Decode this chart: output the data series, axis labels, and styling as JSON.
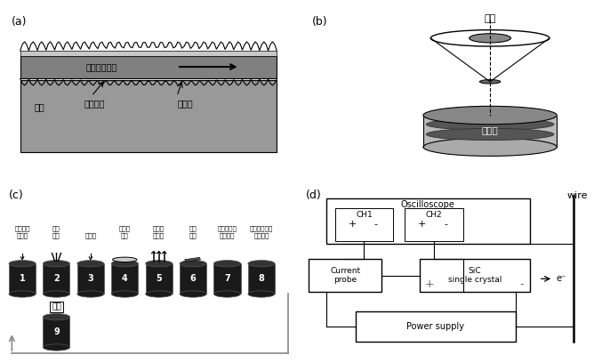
{
  "bg_color": "#ffffff",
  "panel_a": {
    "label": "(a)",
    "wire_text": "线锯运动方向",
    "wire_color": "#808080",
    "wire_light_color": "#c8c8c8",
    "workpiece_color": "#999999",
    "label1": "工件",
    "label2": "固结磨料",
    "label3": "切割区"
  },
  "panel_b": {
    "label": "(b)",
    "laser_text": "激光",
    "layer_text": "处理层",
    "disk_color": "#808080",
    "lens_color": "#d0d0d0"
  },
  "panel_c": {
    "label": "(c)",
    "steps": [
      "表面清洗\n预处理",
      "激光\n调理",
      "栖柱层",
      "聚合物\n涂层",
      "快速冷\n却剥离",
      "剥离\n品片",
      "清除聚合物\n和栖柱层",
      "获得品片和回\n收剩余料"
    ],
    "step9": "抛光",
    "numbers": [
      "1",
      "2",
      "3",
      "4",
      "5",
      "6",
      "7",
      "8",
      "9"
    ],
    "container_color": "#1a1a1a",
    "container_top_color": "#333333"
  },
  "panel_d": {
    "label": "(d)",
    "title": "wire",
    "box1": "Oscilloscope",
    "box2": "Current\nprobe",
    "box3": "SiC\nsingle crystal",
    "box4": "Power supply",
    "ch1": "CH1",
    "ch2": "CH2",
    "plus1": "+",
    "minus1": "-",
    "plus2": "+",
    "minus2": "-",
    "electron": "e⁻"
  }
}
